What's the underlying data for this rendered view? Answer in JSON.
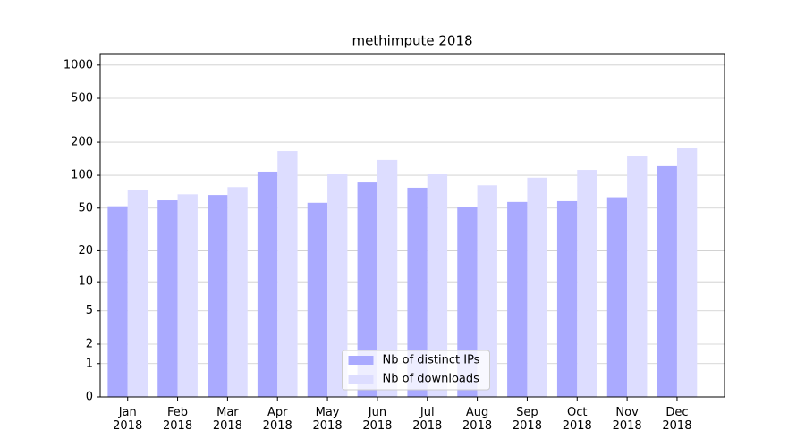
{
  "chart_data": {
    "type": "bar",
    "title": "methimpute 2018",
    "yscale": "log1p",
    "categories": [
      "Jan\n2018",
      "Feb\n2018",
      "Mar\n2018",
      "Apr\n2018",
      "May\n2018",
      "Jun\n2018",
      "Jul\n2018",
      "Aug\n2018",
      "Sep\n2018",
      "Oct\n2018",
      "Nov\n2018",
      "Dec\n2018"
    ],
    "series": [
      {
        "name": "Nb of distinct IPs",
        "color": "#aaaaff",
        "values": [
          52,
          59,
          66,
          108,
          56,
          86,
          77,
          51,
          57,
          58,
          63,
          121
        ]
      },
      {
        "name": "Nb of downloads",
        "color": "#ddddff",
        "values": [
          74,
          67,
          78,
          166,
          102,
          138,
          102,
          81,
          95,
          112,
          149,
          179
        ]
      }
    ],
    "ylim": [
      0,
      1270
    ],
    "yticks": [
      0,
      1,
      2,
      5,
      10,
      20,
      50,
      100,
      200,
      500,
      1000
    ],
    "grid": true,
    "legend": "lower center"
  }
}
